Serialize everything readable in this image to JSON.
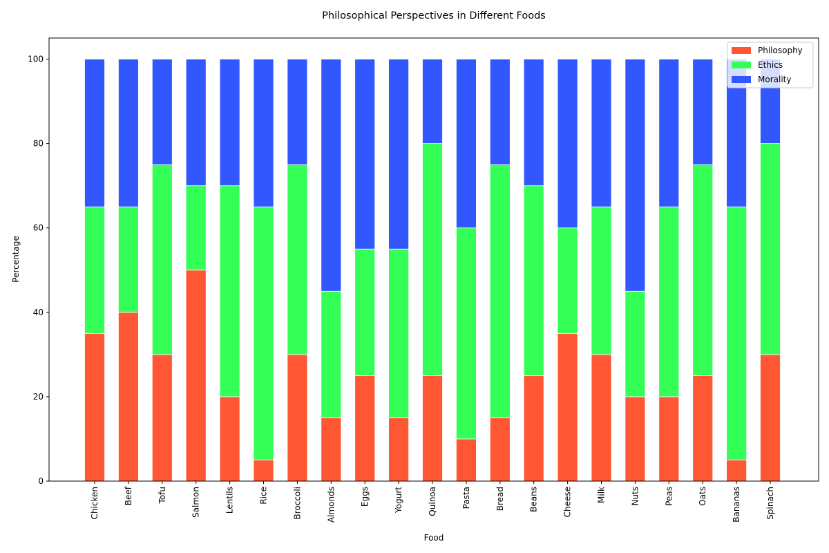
{
  "chart_data": {
    "type": "bar",
    "stacked": true,
    "title": "Philosophical Perspectives in Different Foods",
    "xlabel": "Food",
    "ylabel": "Percentage",
    "ylim": [
      0,
      105
    ],
    "yticks": [
      0,
      20,
      40,
      60,
      80,
      100
    ],
    "grid": false,
    "legend_position": "top-right",
    "categories": [
      "Chicken",
      "Beef",
      "Tofu",
      "Salmon",
      "Lentils",
      "Rice",
      "Broccoli",
      "Almonds",
      "Eggs",
      "Yogurt",
      "Quinoa",
      "Pasta",
      "Bread",
      "Beans",
      "Cheese",
      "Milk",
      "Nuts",
      "Peas",
      "Oats",
      "Bananas",
      "Spinach"
    ],
    "series": [
      {
        "name": "Philosophy",
        "color": "#ff5733",
        "values": [
          35,
          40,
          30,
          50,
          20,
          5,
          30,
          15,
          25,
          15,
          25,
          10,
          15,
          25,
          35,
          30,
          20,
          20,
          25,
          5,
          30
        ]
      },
      {
        "name": "Ethics",
        "color": "#33ff57",
        "values": [
          30,
          25,
          45,
          20,
          50,
          60,
          45,
          30,
          30,
          40,
          55,
          50,
          60,
          45,
          25,
          35,
          25,
          45,
          50,
          60,
          50
        ]
      },
      {
        "name": "Morality",
        "color": "#3357ff",
        "values": [
          35,
          35,
          25,
          30,
          30,
          35,
          25,
          55,
          45,
          45,
          20,
          40,
          25,
          30,
          40,
          35,
          55,
          35,
          25,
          35,
          20
        ]
      }
    ]
  }
}
